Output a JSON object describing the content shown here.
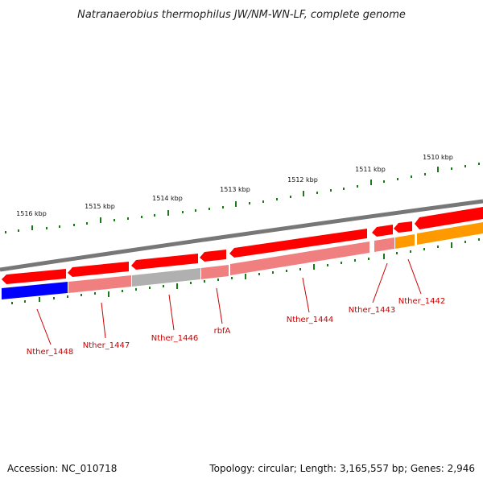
{
  "title": "Natranaerobius thermophilus JW/NM-WN-LF, complete genome",
  "accession": "Accession: NC_010718",
  "topology": "Topology: circular; Length: 3,165,557 bp; Genes: 2,946",
  "ruler": {
    "labels": [
      "1516 kbp",
      "1515 kbp",
      "1514 kbp",
      "1513 kbp",
      "1512 kbp",
      "1511 kbp",
      "1510 kbp"
    ]
  },
  "genes": {
    "labels": [
      "Nther_1448",
      "Nther_1447",
      "Nther_1446",
      "rbfA",
      "Nther_1444",
      "Nther_1443",
      "Nther_1442"
    ]
  },
  "colors": {
    "backbone": "#808080",
    "forward_feature": "#ff0000",
    "cds_blue": "#0000ff",
    "cds_pink": "#f08080",
    "cds_grey": "#b0b0b0",
    "cds_orange": "#ff9900",
    "tick": "#1a7a1a",
    "label": "#cc0000"
  }
}
